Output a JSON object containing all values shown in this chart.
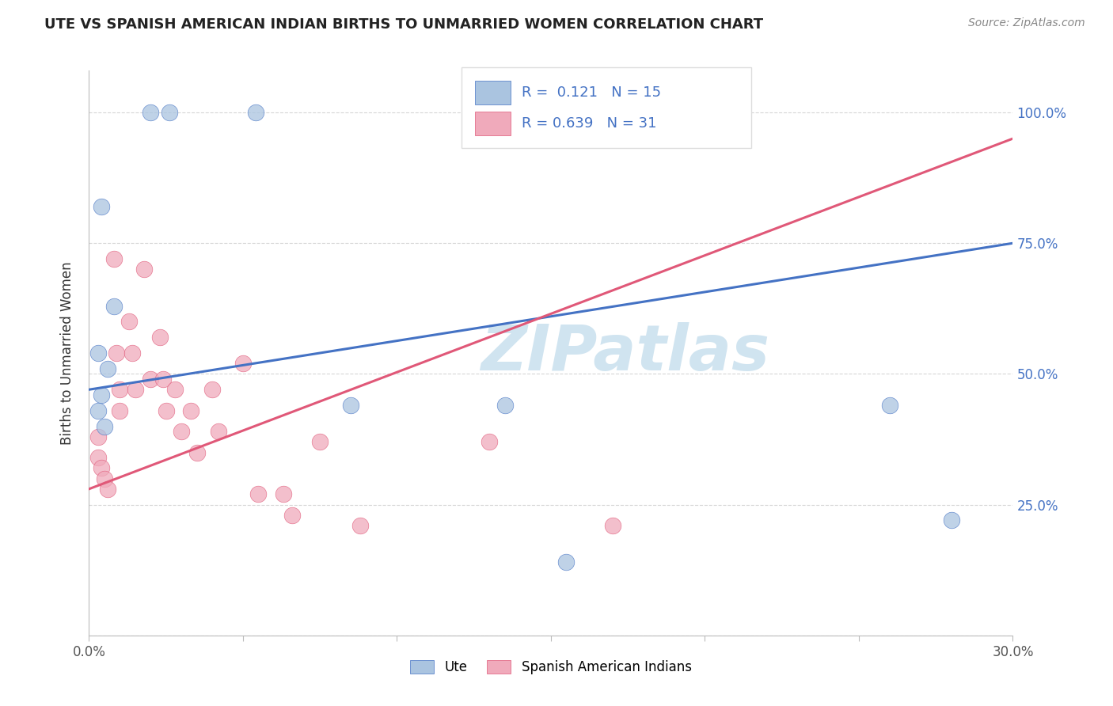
{
  "title": "UTE VS SPANISH AMERICAN INDIAN BIRTHS TO UNMARRIED WOMEN CORRELATION CHART",
  "source": "Source: ZipAtlas.com",
  "ylabel": "Births to Unmarried Women",
  "xlim": [
    0.0,
    0.3
  ],
  "ylim": [
    0.0,
    1.08
  ],
  "legend_labels": [
    "Ute",
    "Spanish American Indians"
  ],
  "ute_R": "0.121",
  "ute_N": "15",
  "spanish_R": "0.639",
  "spanish_N": "31",
  "ute_color": "#aac4e0",
  "spanish_color": "#f0aabb",
  "ute_line_color": "#4472c4",
  "spanish_line_color": "#e05878",
  "background_color": "#ffffff",
  "grid_color": "#cccccc",
  "title_color": "#222222",
  "source_color": "#888888",
  "legend_r_color": "#4472c4",
  "ute_scatter_x": [
    0.02,
    0.026,
    0.054,
    0.004,
    0.008,
    0.003,
    0.006,
    0.004,
    0.003,
    0.005,
    0.085,
    0.135,
    0.28,
    0.155,
    0.26
  ],
  "ute_scatter_y": [
    1.0,
    1.0,
    1.0,
    0.82,
    0.63,
    0.54,
    0.51,
    0.46,
    0.43,
    0.4,
    0.44,
    0.44,
    0.22,
    0.14,
    0.44
  ],
  "spanish_scatter_x": [
    0.003,
    0.003,
    0.004,
    0.005,
    0.006,
    0.008,
    0.009,
    0.01,
    0.01,
    0.013,
    0.014,
    0.015,
    0.018,
    0.02,
    0.023,
    0.024,
    0.025,
    0.028,
    0.03,
    0.033,
    0.035,
    0.04,
    0.042,
    0.05,
    0.055,
    0.063,
    0.066,
    0.075,
    0.088,
    0.13,
    0.17
  ],
  "spanish_scatter_y": [
    0.38,
    0.34,
    0.32,
    0.3,
    0.28,
    0.72,
    0.54,
    0.47,
    0.43,
    0.6,
    0.54,
    0.47,
    0.7,
    0.49,
    0.57,
    0.49,
    0.43,
    0.47,
    0.39,
    0.43,
    0.35,
    0.47,
    0.39,
    0.52,
    0.27,
    0.27,
    0.23,
    0.37,
    0.21,
    0.37,
    0.21
  ],
  "ute_trendline_x": [
    0.0,
    0.3
  ],
  "ute_trendline_y": [
    0.47,
    0.75
  ],
  "spanish_trendline_x": [
    0.0,
    0.3
  ],
  "spanish_trendline_y": [
    0.28,
    0.95
  ],
  "watermark_text": "ZIPatlas",
  "watermark_color": "#d0e4f0"
}
